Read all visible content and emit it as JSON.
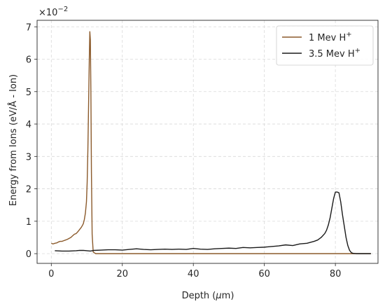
{
  "chart_data": {
    "type": "line",
    "title": "",
    "xlabel": "Depth ($\\mu$m)",
    "xlabel_prefix": "Depth (",
    "xlabel_mu": "μ",
    "xlabel_suffix": "m)",
    "ylabel": "Energy from Ions (eV/Å - Ion)",
    "y_scale_base": "×10",
    "y_scale_exp": "−2",
    "xlim": [
      -4,
      92
    ],
    "ylim": [
      -0.3,
      7.2
    ],
    "xticks": [
      0,
      20,
      40,
      60,
      80
    ],
    "xtick_labels": [
      "0",
      "20",
      "40",
      "60",
      "80"
    ],
    "yticks": [
      0,
      1,
      2,
      3,
      4,
      5,
      6,
      7
    ],
    "ytick_labels": [
      "0",
      "1",
      "2",
      "3",
      "4",
      "5",
      "6",
      "7"
    ],
    "grid": true,
    "legend_position": "top-right",
    "series": [
      {
        "name": "1 Mev H",
        "name_sup": "+",
        "color": "#8b5a2b",
        "x": [
          0,
          0.5,
          1,
          1.5,
          2,
          2.5,
          3,
          3.5,
          4,
          4.5,
          5,
          5.5,
          6,
          6.5,
          7,
          7.5,
          8,
          8.5,
          9,
          9.3,
          9.6,
          9.9,
          10.1,
          10.3,
          10.5,
          10.7,
          10.85,
          11.0,
          11.15,
          11.3,
          11.5,
          11.8,
          12.5,
          14,
          20,
          30,
          40,
          50,
          60,
          70,
          80,
          90
        ],
        "y": [
          0.32,
          0.3,
          0.32,
          0.33,
          0.36,
          0.38,
          0.38,
          0.4,
          0.42,
          0.44,
          0.47,
          0.5,
          0.55,
          0.6,
          0.62,
          0.68,
          0.75,
          0.82,
          0.92,
          1.05,
          1.25,
          1.6,
          2.2,
          3.2,
          4.6,
          6.0,
          6.85,
          6.6,
          5.0,
          2.5,
          0.6,
          0.05,
          0.0,
          0.0,
          0.0,
          0.0,
          0.0,
          0.0,
          0.0,
          0.0,
          0.0,
          0.0
        ]
      },
      {
        "name": "3.5 Mev H",
        "name_sup": "+",
        "color": "#1a1a1a",
        "x": [
          1,
          3,
          5,
          7,
          8,
          9,
          10,
          11,
          12,
          14,
          16,
          18,
          20,
          22,
          24,
          26,
          28,
          30,
          32,
          34,
          36,
          38,
          40,
          42,
          44,
          46,
          48,
          50,
          52,
          54,
          56,
          58,
          60,
          62,
          64,
          66,
          68,
          70,
          72,
          73,
          74,
          75,
          76,
          77,
          77.5,
          78,
          78.5,
          79,
          79.5,
          80,
          80.5,
          81,
          81.5,
          82,
          82.5,
          83,
          83.5,
          84,
          84.5,
          85,
          86,
          88,
          90
        ],
        "y": [
          0.09,
          0.08,
          0.08,
          0.09,
          0.1,
          0.1,
          0.09,
          0.08,
          0.1,
          0.11,
          0.12,
          0.12,
          0.11,
          0.13,
          0.15,
          0.13,
          0.12,
          0.13,
          0.14,
          0.13,
          0.14,
          0.13,
          0.16,
          0.14,
          0.13,
          0.15,
          0.16,
          0.17,
          0.16,
          0.19,
          0.18,
          0.19,
          0.2,
          0.22,
          0.24,
          0.27,
          0.25,
          0.3,
          0.32,
          0.35,
          0.38,
          0.42,
          0.5,
          0.62,
          0.72,
          0.88,
          1.1,
          1.4,
          1.7,
          1.9,
          1.9,
          1.88,
          1.6,
          1.2,
          0.85,
          0.5,
          0.25,
          0.1,
          0.03,
          0.01,
          0.0,
          0.0,
          0.0
        ]
      }
    ]
  }
}
